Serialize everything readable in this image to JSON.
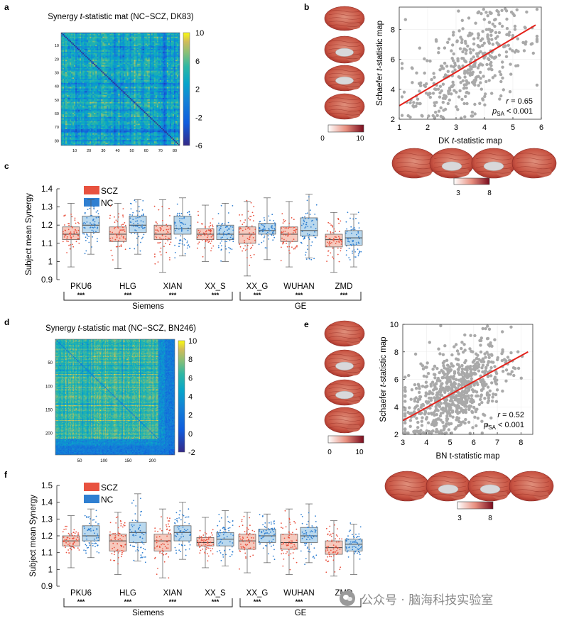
{
  "panel_labels": {
    "a": "a",
    "b": "b",
    "c": "c",
    "d": "d",
    "e": "e",
    "f": "f"
  },
  "colors": {
    "scz": "#e8523f",
    "nc": "#2f7fd1",
    "scz_box": "#f6c9bd",
    "nc_box": "#b9d8ee",
    "trend": "#e4221b",
    "scatter": "#a9a9a9",
    "watermark": "#8a8a8a"
  },
  "panel_a": {
    "title_pre": "Synergy ",
    "title_t": "t",
    "title_post": "-statistic mat (NC−SCZ, DK83)",
    "ticks": [
      "10",
      "20",
      "30",
      "40",
      "50",
      "60",
      "70",
      "80"
    ],
    "colorbar_ticks": [
      "10",
      "6",
      "2",
      "-2",
      "-6"
    ]
  },
  "panel_d": {
    "title_pre": "Synergy ",
    "title_t": "t",
    "title_post": "-statistic mat (NC−SCZ, BN246)",
    "yticks": [
      "50",
      "100",
      "150",
      "200"
    ],
    "xticks": [
      "50",
      "100",
      "150",
      "200"
    ],
    "colorbar_ticks": [
      "10",
      "8",
      "6",
      "4",
      "2",
      "0",
      "-2"
    ]
  },
  "chart_data": [
    {
      "panel": "b",
      "type": "scatter",
      "xlabel_pre": "DK ",
      "xlabel_t": "t",
      "xlabel_post": "-statistic map",
      "ylabel_pre": "Schaefer ",
      "ylabel_t": "t",
      "ylabel_post": "-statistic map",
      "xlim": [
        1,
        6
      ],
      "ylim": [
        2,
        9.5
      ],
      "xticks": [
        "1",
        "2",
        "3",
        "4",
        "5",
        "6"
      ],
      "yticks": [
        "2",
        "4",
        "6",
        "8"
      ],
      "trend": {
        "x0": 1.0,
        "y0": 2.9,
        "x1": 5.8,
        "y1": 8.3
      },
      "stat_r": "r = 0.65",
      "stat_p_label": "p",
      "stat_p_sub": "SA",
      "stat_p_val": " < 0.001",
      "colorbar_ticks": [
        "0",
        "10"
      ],
      "surface_colorbar_ticks": [
        "3",
        "8"
      ],
      "n_points": 400,
      "slope": 1.1,
      "intercept": 1.8,
      "x_center": 3.4,
      "x_spread": 1.1,
      "noise": 1.55
    },
    {
      "panel": "e",
      "type": "scatter",
      "xlabel": "BN t-statistic map",
      "ylabel_pre": "Schaefer ",
      "ylabel_t": "t",
      "ylabel_post": "-statistic map",
      "xlim": [
        3,
        8.5
      ],
      "ylim": [
        2,
        10
      ],
      "xticks": [
        "3",
        "4",
        "5",
        "6",
        "7",
        "8"
      ],
      "yticks": [
        "2",
        "4",
        "6",
        "8",
        "10"
      ],
      "trend": {
        "x0": 3.0,
        "y0": 3.0,
        "x1": 8.3,
        "y1": 8.0
      },
      "stat_r": "r = 0.52",
      "stat_p_label": "p",
      "stat_p_sub": "SA",
      "stat_p_val": " < 0.001",
      "colorbar_ticks": [
        "0",
        "10"
      ],
      "surface_colorbar_ticks": [
        "3",
        "8"
      ],
      "n_points": 750,
      "slope": 0.95,
      "intercept": 0.15,
      "x_center": 5.2,
      "x_spread": 1.05,
      "noise": 1.45
    },
    {
      "panel": "c",
      "type": "box",
      "ylabel": "Subject mean Synergy",
      "ylim": [
        0.9,
        1.4
      ],
      "yticks": [
        "0.9",
        "1",
        "1.1",
        "1.2",
        "1.3",
        "1.4"
      ],
      "legend": [
        "SCZ",
        "NC"
      ],
      "sites": [
        "PKU6",
        "HLG",
        "XIAN",
        "XX_S",
        "XX_G",
        "WUHAN",
        "ZMD"
      ],
      "significance": [
        "***",
        "***",
        "***",
        "***",
        "***",
        "***",
        "***"
      ],
      "groups": [
        {
          "label": "Siemens",
          "from": 0,
          "to": 3
        },
        {
          "label": "GE",
          "from": 4,
          "to": 6
        }
      ],
      "series": [
        {
          "name": "SCZ",
          "q1": [
            1.12,
            1.11,
            1.12,
            1.12,
            1.1,
            1.11,
            1.08
          ],
          "median": [
            1.15,
            1.15,
            1.15,
            1.15,
            1.15,
            1.15,
            1.12
          ],
          "q3": [
            1.19,
            1.19,
            1.2,
            1.18,
            1.19,
            1.19,
            1.15
          ],
          "wlo": [
            0.97,
            0.96,
            0.94,
            1.0,
            0.92,
            0.97,
            0.94
          ],
          "whi": [
            1.32,
            1.32,
            1.34,
            1.31,
            1.33,
            1.33,
            1.27
          ]
        },
        {
          "name": "NC",
          "q1": [
            1.16,
            1.16,
            1.15,
            1.12,
            1.15,
            1.14,
            1.09
          ],
          "median": [
            1.2,
            1.2,
            1.18,
            1.15,
            1.17,
            1.17,
            1.13
          ],
          "q3": [
            1.25,
            1.25,
            1.25,
            1.2,
            1.21,
            1.24,
            1.17
          ],
          "wlo": [
            1.04,
            1.04,
            1.03,
            1.0,
            1.01,
            1.02,
            0.97
          ],
          "whi": [
            1.34,
            1.34,
            1.35,
            1.32,
            1.35,
            1.37,
            1.26
          ]
        }
      ]
    },
    {
      "panel": "f",
      "type": "box",
      "ylabel": "Subject mean Synergy",
      "ylim": [
        0.9,
        1.5
      ],
      "yticks": [
        "0.9",
        "1",
        "1.1",
        "1.2",
        "1.3",
        "1.4",
        "1.5"
      ],
      "legend": [
        "SCZ",
        "NC"
      ],
      "sites": [
        "PKU6",
        "HLG",
        "XIAN",
        "XX_S",
        "XX_G",
        "WUHAN",
        "ZMD"
      ],
      "significance": [
        "***",
        "***",
        "***",
        "***",
        "***",
        "***",
        "***"
      ],
      "groups": [
        {
          "label": "Siemens",
          "from": 0,
          "to": 3
        },
        {
          "label": "GE",
          "from": 4,
          "to": 6
        }
      ],
      "series": [
        {
          "name": "SCZ",
          "q1": [
            1.14,
            1.11,
            1.11,
            1.14,
            1.12,
            1.12,
            1.09
          ],
          "median": [
            1.17,
            1.17,
            1.17,
            1.16,
            1.17,
            1.16,
            1.13
          ],
          "q3": [
            1.2,
            1.21,
            1.21,
            1.19,
            1.21,
            1.21,
            1.17
          ],
          "wlo": [
            1.01,
            0.97,
            0.95,
            1.01,
            0.98,
            0.97,
            0.96
          ],
          "whi": [
            1.32,
            1.34,
            1.36,
            1.31,
            1.34,
            1.36,
            1.29
          ]
        },
        {
          "name": "NC",
          "q1": [
            1.17,
            1.16,
            1.17,
            1.14,
            1.16,
            1.16,
            1.11
          ],
          "median": [
            1.2,
            1.22,
            1.22,
            1.18,
            1.2,
            1.2,
            1.15
          ],
          "q3": [
            1.26,
            1.28,
            1.26,
            1.22,
            1.24,
            1.25,
            1.18
          ],
          "wlo": [
            1.07,
            1.05,
            1.06,
            1.02,
            1.04,
            1.04,
            0.97
          ],
          "whi": [
            1.36,
            1.45,
            1.4,
            1.35,
            1.33,
            1.39,
            1.27
          ]
        }
      ]
    }
  ],
  "watermark": {
    "text": "公众号 · 脑海科技实验室"
  }
}
